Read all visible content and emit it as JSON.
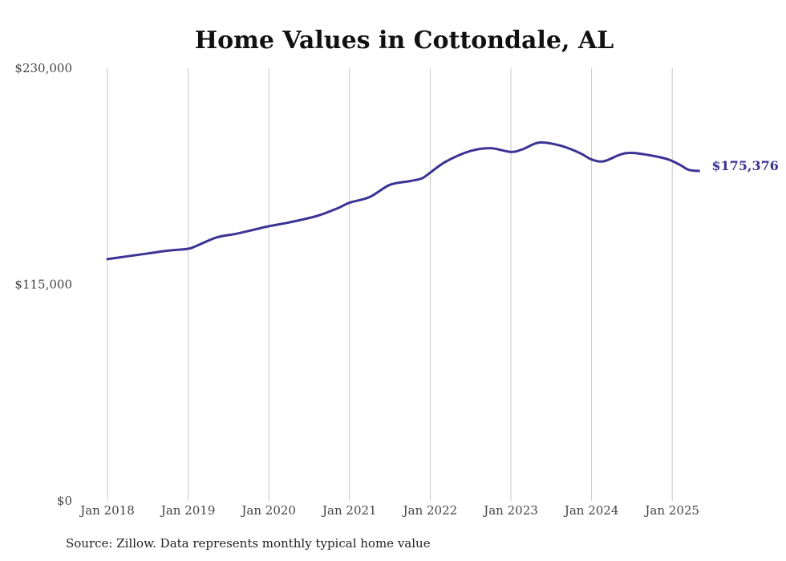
{
  "chart_data": {
    "type": "line",
    "title": "Home Values in Cottondale, AL",
    "xlabel": "",
    "ylabel": "",
    "ylim": [
      0,
      230000
    ],
    "y_ticks": [
      {
        "value": 0,
        "label": "$0"
      },
      {
        "value": 115000,
        "label": "$115,000"
      },
      {
        "value": 230000,
        "label": "$230,000"
      }
    ],
    "x_ticks": [
      {
        "value": 2018,
        "label": "Jan 2018"
      },
      {
        "value": 2019,
        "label": "Jan 2019"
      },
      {
        "value": 2020,
        "label": "Jan 2020"
      },
      {
        "value": 2021,
        "label": "Jan 2021"
      },
      {
        "value": 2022,
        "label": "Jan 2022"
      },
      {
        "value": 2023,
        "label": "Jan 2023"
      },
      {
        "value": 2024,
        "label": "Jan 2024"
      },
      {
        "value": 2025,
        "label": "Jan 2025"
      }
    ],
    "xlim": [
      2018,
      2025.33
    ],
    "grid": "vertical",
    "line_color": "#3b3494",
    "series": [
      {
        "x": [
          2018.0,
          2018.25,
          2018.5,
          2018.75,
          2019.0,
          2019.1,
          2019.35,
          2019.6,
          2019.85,
          2020.0,
          2020.25,
          2020.6,
          2020.85,
          2021.0,
          2021.25,
          2021.5,
          2021.75,
          2021.9,
          2022.0,
          2022.2,
          2022.5,
          2022.75,
          2023.0,
          2023.15,
          2023.35,
          2023.6,
          2023.85,
          2024.0,
          2024.15,
          2024.35,
          2024.5,
          2024.75,
          2024.95,
          2025.1,
          2025.2,
          2025.33
        ],
        "values": [
          128500,
          130000,
          131500,
          133000,
          134000,
          135500,
          140000,
          142000,
          144500,
          146000,
          148000,
          151500,
          155500,
          158500,
          161500,
          168000,
          170000,
          171500,
          174500,
          180500,
          186000,
          187500,
          185500,
          187000,
          190500,
          189000,
          185000,
          181500,
          180500,
          184000,
          185000,
          183500,
          181500,
          178500,
          176000,
          175376
        ]
      }
    ],
    "end_label": "$175,376",
    "source_note": "Source: Zillow. Data represents monthly typical home value"
  }
}
